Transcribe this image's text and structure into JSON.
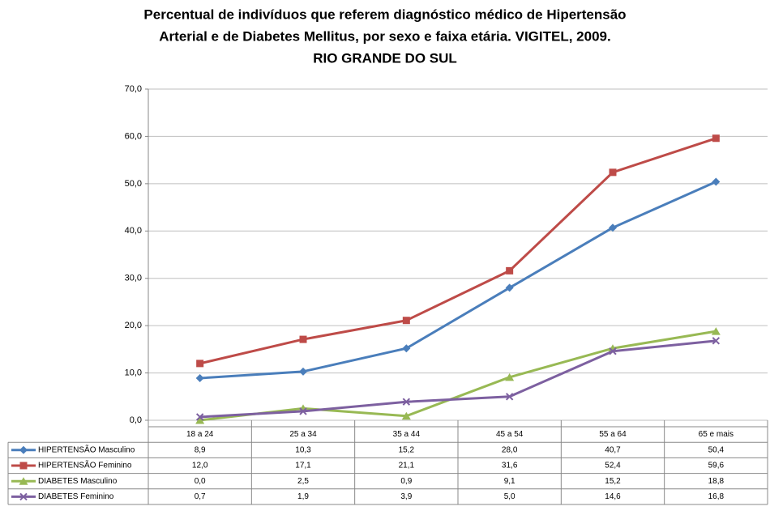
{
  "chart_data": {
    "type": "line",
    "title": [
      "Percentual de indivíduos que referem diagnóstico médico de Hipertensão",
      "Arterial e de Diabetes Mellitus, por sexo e faixa etária. VIGITEL, 2009.",
      "RIO GRANDE DO SUL"
    ],
    "categories": [
      "18 a 24",
      "25 a 34",
      "35 a 44",
      "45 a 54",
      "55 a 64",
      "65 e mais"
    ],
    "ylim": [
      0,
      70
    ],
    "yticks": [
      {
        "value": 0,
        "label": "0,0"
      },
      {
        "value": 10,
        "label": "10,0"
      },
      {
        "value": 20,
        "label": "20,0"
      },
      {
        "value": 30,
        "label": "30,0"
      },
      {
        "value": 40,
        "label": "40,0"
      },
      {
        "value": 50,
        "label": "50,0"
      },
      {
        "value": 60,
        "label": "60,0"
      },
      {
        "value": 70,
        "label": "70,0"
      }
    ],
    "grid": true,
    "data_table": true,
    "series": [
      {
        "name": "HIPERTENSÃO  Masculino",
        "color": "#4a7ebb",
        "marker": "diamond",
        "values": [
          8.9,
          10.3,
          15.2,
          28.0,
          40.7,
          50.4
        ],
        "value_labels": [
          "8,9",
          "10,3",
          "15,2",
          "28,0",
          "40,7",
          "50,4"
        ]
      },
      {
        "name": "HIPERTENSÃO  Feminino",
        "color": "#be4b48",
        "marker": "square",
        "values": [
          12.0,
          17.1,
          21.1,
          31.6,
          52.4,
          59.6
        ],
        "value_labels": [
          "12,0",
          "17,1",
          "21,1",
          "31,6",
          "52,4",
          "59,6"
        ]
      },
      {
        "name": "DIABETES Masculino",
        "color": "#98b954",
        "marker": "triangle",
        "values": [
          0.0,
          2.5,
          0.9,
          9.1,
          15.2,
          18.8
        ],
        "value_labels": [
          "0,0",
          "2,5",
          "0,9",
          "9,1",
          "15,2",
          "18,8"
        ]
      },
      {
        "name": "DIABETES Feminino",
        "color": "#7d60a0",
        "marker": "x",
        "values": [
          0.7,
          1.9,
          3.9,
          5.0,
          14.6,
          16.8
        ],
        "value_labels": [
          "0,7",
          "1,9",
          "3,9",
          "5,0",
          "14,6",
          "16,8"
        ]
      }
    ]
  }
}
